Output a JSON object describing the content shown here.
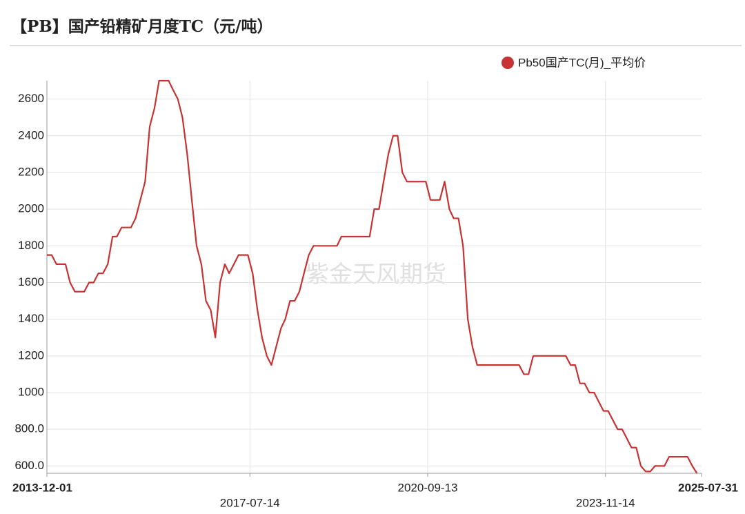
{
  "chart_data": {
    "type": "line",
    "title": "【PB】国产铅精矿月度TC（元/吨）",
    "watermark": "紫金天风期货",
    "x": [
      "2013-12-01",
      "2014-01-01",
      "2014-02-01",
      "2014-03-01",
      "2014-04-01",
      "2014-05-01",
      "2014-06-01",
      "2014-07-01",
      "2014-08-01",
      "2014-09-01",
      "2014-10-01",
      "2014-11-01",
      "2014-12-01",
      "2015-01-01",
      "2015-02-01",
      "2015-03-01",
      "2015-04-01",
      "2015-05-01",
      "2015-06-01",
      "2015-07-01",
      "2015-08-01",
      "2015-09-01",
      "2015-10-01",
      "2015-11-01",
      "2015-12-01",
      "2016-01-01",
      "2016-02-01",
      "2016-03-01",
      "2016-04-01",
      "2016-05-01",
      "2016-06-01",
      "2016-07-01",
      "2016-08-01",
      "2016-09-01",
      "2016-10-01",
      "2016-11-01",
      "2016-12-01",
      "2017-01-01",
      "2017-02-01",
      "2017-03-01",
      "2017-04-01",
      "2017-05-01",
      "2017-06-01",
      "2017-07-01",
      "2017-08-01",
      "2017-09-01",
      "2017-10-01",
      "2017-11-01",
      "2017-12-01",
      "2018-01-01",
      "2018-02-01",
      "2018-03-01",
      "2018-04-01",
      "2018-05-01",
      "2018-06-01",
      "2018-07-01",
      "2018-08-01",
      "2018-09-01",
      "2018-10-01",
      "2018-11-01",
      "2018-12-01",
      "2019-01-01",
      "2019-02-01",
      "2019-03-01",
      "2019-04-01",
      "2019-05-01",
      "2019-06-01",
      "2019-07-01",
      "2019-08-01",
      "2019-09-01",
      "2019-10-01",
      "2019-11-01",
      "2019-12-01",
      "2020-01-01",
      "2020-02-01",
      "2020-03-01",
      "2020-04-01",
      "2020-05-01",
      "2020-06-01",
      "2020-07-01",
      "2020-08-01",
      "2020-09-01",
      "2020-10-01",
      "2020-11-01",
      "2020-12-01",
      "2021-01-01",
      "2021-02-01",
      "2021-03-01",
      "2021-04-01",
      "2021-05-01",
      "2021-06-01",
      "2021-07-01",
      "2021-08-01",
      "2021-09-01",
      "2021-10-01",
      "2021-11-01",
      "2021-12-01",
      "2022-01-01",
      "2022-02-01",
      "2022-03-01",
      "2022-04-01",
      "2022-05-01",
      "2022-06-01",
      "2022-07-01",
      "2022-08-01",
      "2022-09-01",
      "2022-10-01",
      "2022-11-01",
      "2022-12-01",
      "2023-01-01",
      "2023-02-01",
      "2023-03-01",
      "2023-04-01",
      "2023-05-01",
      "2023-06-01",
      "2023-07-01",
      "2023-08-01",
      "2023-09-01",
      "2023-10-01",
      "2023-11-01",
      "2023-12-01",
      "2024-01-01",
      "2024-02-01",
      "2024-03-01",
      "2024-04-01",
      "2024-05-01",
      "2024-06-01",
      "2024-07-01",
      "2024-08-01",
      "2024-09-01",
      "2024-10-01",
      "2024-11-01",
      "2024-12-01",
      "2025-01-01",
      "2025-02-01",
      "2025-03-01",
      "2025-04-01",
      "2025-05-01",
      "2025-06-01",
      "2025-07-01"
    ],
    "series": [
      {
        "name": "Pb50国产TC(月)_平均价",
        "color": "#c83232",
        "values": [
          1750,
          1750,
          1700,
          1700,
          1700,
          1600,
          1550,
          1550,
          1550,
          1600,
          1600,
          1650,
          1650,
          1700,
          1850,
          1850,
          1900,
          1900,
          1900,
          1950,
          2050,
          2150,
          2450,
          2550,
          2700,
          2700,
          2700,
          2650,
          2600,
          2500,
          2300,
          2050,
          1800,
          1700,
          1500,
          1450,
          1300,
          1600,
          1700,
          1650,
          1700,
          1750,
          1750,
          1750,
          1650,
          1450,
          1300,
          1200,
          1150,
          1250,
          1350,
          1400,
          1500,
          1500,
          1550,
          1650,
          1750,
          1800,
          1800,
          1800,
          1800,
          1800,
          1800,
          1850,
          1850,
          1850,
          1850,
          1850,
          1850,
          1850,
          2000,
          2000,
          2150,
          2300,
          2400,
          2400,
          2200,
          2150,
          2150,
          2150,
          2150,
          2150,
          2050,
          2050,
          2050,
          2150,
          2000,
          1950,
          1950,
          1800,
          1400,
          1250,
          1150,
          1150,
          1150,
          1150,
          1150,
          1150,
          1150,
          1150,
          1150,
          1150,
          1100,
          1100,
          1200,
          1200,
          1200,
          1200,
          1200,
          1200,
          1200,
          1200,
          1150,
          1150,
          1050,
          1050,
          1000,
          1000,
          950,
          900,
          900,
          850,
          800,
          800,
          750,
          700,
          700,
          600,
          570,
          570,
          600,
          600,
          600,
          650,
          650,
          650,
          650,
          650,
          600,
          560
        ]
      }
    ],
    "xlim": [
      "2013-12-01",
      "2025-07-31"
    ],
    "xticks": [
      "2013-12-01",
      "2017-07-14",
      "2020-09-13",
      "2023-11-14",
      "2025-07-31"
    ],
    "ylim": [
      560,
      2700
    ],
    "yticks": [
      {
        "value": 600,
        "label": "600.0"
      },
      {
        "value": 800,
        "label": "800.0"
      },
      1000,
      1200,
      1400,
      1600,
      1800,
      2000,
      2200,
      2400,
      2600
    ],
    "grid": true,
    "legend": "top-right"
  }
}
